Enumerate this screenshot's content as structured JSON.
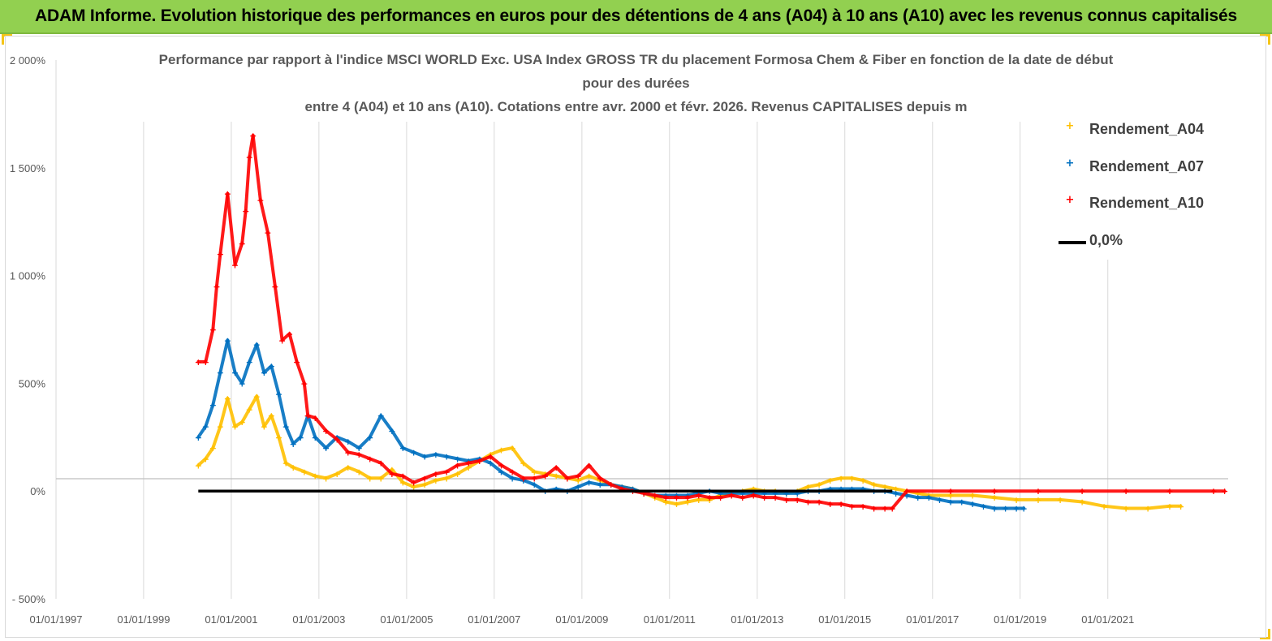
{
  "banner": {
    "title": "ADAM Informe. Evolution historique des performances en euros pour des détentions de 4 ans (A04) à 10 ans (A10) avec les revenus connus capitalisés"
  },
  "colors": {
    "banner_bg": "#92d050",
    "corner_marks": "#f5c518",
    "A04": "#ffc000",
    "A07": "#0070c0",
    "A10": "#ff0000",
    "zero_line": "#000000"
  },
  "chart_data": {
    "type": "scatter",
    "title": [
      "Performance par rapport à l'indice MSCI WORLD Exc. USA Index GROSS TR  du placement Formosa Chem & Fiber  en fonction de la date de début",
      "pour des durées",
      "entre 4 (A04) et 10 ans (A10). Cotations entre avr. 2000 et févr. 2026. Revenus CAPITALISES depuis m"
    ],
    "xlabel": "",
    "ylabel": "",
    "x_axis": {
      "type": "date",
      "range": [
        "1997-01-01",
        "2023-10-01"
      ],
      "tick_labels": [
        "01/01/1997",
        "01/01/1999",
        "01/01/2001",
        "01/01/2003",
        "01/01/2005",
        "01/01/2007",
        "01/01/2009",
        "01/01/2011",
        "01/01/2013",
        "01/01/2015",
        "01/01/2017",
        "01/01/2019",
        "01/01/2021"
      ]
    },
    "y_axis": {
      "range": [
        -5,
        20
      ],
      "unit": "ratio (1 = 100%)",
      "tick_values": [
        -5,
        0,
        5,
        10,
        15,
        20
      ],
      "tick_labels": [
        "- 500%",
        "0%",
        "500%",
        "1 000%",
        "1 500%",
        "2 000%"
      ]
    },
    "grid": {
      "horizontal": false,
      "vertical": true,
      "horizontal_baseline_at": 0
    },
    "legend": {
      "placement": "right",
      "entries": [
        "Rendement_A04",
        "Rendement_A07",
        "Rendement_A10",
        "0,0%"
      ]
    },
    "series": [
      {
        "name": "Rendement_A04",
        "marker": "+",
        "color": "#ffc000",
        "points": [
          [
            "2000-04-01",
            1.2
          ],
          [
            "2000-06-01",
            1.5
          ],
          [
            "2000-08-01",
            2.0
          ],
          [
            "2000-10-01",
            3.0
          ],
          [
            "2000-12-01",
            4.3
          ],
          [
            "2001-02-01",
            3.0
          ],
          [
            "2001-04-01",
            3.2
          ],
          [
            "2001-06-01",
            3.8
          ],
          [
            "2001-08-01",
            4.4
          ],
          [
            "2001-10-01",
            3.0
          ],
          [
            "2001-12-01",
            3.5
          ],
          [
            "2002-02-01",
            2.5
          ],
          [
            "2002-04-01",
            1.3
          ],
          [
            "2002-06-01",
            1.1
          ],
          [
            "2002-09-01",
            0.9
          ],
          [
            "2002-12-01",
            0.7
          ],
          [
            "2003-03-01",
            0.6
          ],
          [
            "2003-06-01",
            0.8
          ],
          [
            "2003-09-01",
            1.1
          ],
          [
            "2003-12-01",
            0.9
          ],
          [
            "2004-03-01",
            0.6
          ],
          [
            "2004-06-01",
            0.6
          ],
          [
            "2004-09-01",
            1.0
          ],
          [
            "2004-12-01",
            0.4
          ],
          [
            "2005-03-01",
            0.2
          ],
          [
            "2005-06-01",
            0.3
          ],
          [
            "2005-09-01",
            0.5
          ],
          [
            "2005-12-01",
            0.6
          ],
          [
            "2006-03-01",
            0.8
          ],
          [
            "2006-06-01",
            1.1
          ],
          [
            "2006-09-01",
            1.4
          ],
          [
            "2006-12-01",
            1.7
          ],
          [
            "2007-03-01",
            1.9
          ],
          [
            "2007-06-01",
            2.0
          ],
          [
            "2007-09-01",
            1.3
          ],
          [
            "2007-12-01",
            0.9
          ],
          [
            "2008-03-01",
            0.8
          ],
          [
            "2008-06-01",
            0.7
          ],
          [
            "2008-09-01",
            0.6
          ],
          [
            "2008-12-01",
            0.5
          ],
          [
            "2009-03-01",
            0.7
          ],
          [
            "2009-06-01",
            0.5
          ],
          [
            "2009-09-01",
            0.3
          ],
          [
            "2009-12-01",
            0.2
          ],
          [
            "2010-03-01",
            0.1
          ],
          [
            "2010-06-01",
            -0.1
          ],
          [
            "2010-09-01",
            -0.3
          ],
          [
            "2010-12-01",
            -0.5
          ],
          [
            "2011-03-01",
            -0.6
          ],
          [
            "2011-06-01",
            -0.5
          ],
          [
            "2011-09-01",
            -0.4
          ],
          [
            "2011-12-01",
            -0.4
          ],
          [
            "2012-03-01",
            -0.2
          ],
          [
            "2012-06-01",
            -0.1
          ],
          [
            "2012-09-01",
            0.0
          ],
          [
            "2012-12-01",
            0.1
          ],
          [
            "2013-03-01",
            0.0
          ],
          [
            "2013-06-01",
            0.0
          ],
          [
            "2013-09-01",
            -0.1
          ],
          [
            "2013-12-01",
            0.0
          ],
          [
            "2014-03-01",
            0.2
          ],
          [
            "2014-06-01",
            0.3
          ],
          [
            "2014-09-01",
            0.5
          ],
          [
            "2014-12-01",
            0.6
          ],
          [
            "2015-03-01",
            0.6
          ],
          [
            "2015-06-01",
            0.5
          ],
          [
            "2015-09-01",
            0.3
          ],
          [
            "2015-12-01",
            0.2
          ],
          [
            "2016-03-01",
            0.1
          ],
          [
            "2016-06-01",
            0.0
          ],
          [
            "2016-09-01",
            -0.1
          ],
          [
            "2016-12-01",
            -0.2
          ],
          [
            "2017-06-01",
            -0.2
          ],
          [
            "2017-12-01",
            -0.2
          ],
          [
            "2018-06-01",
            -0.3
          ],
          [
            "2018-12-01",
            -0.4
          ],
          [
            "2019-06-01",
            -0.4
          ],
          [
            "2019-12-01",
            -0.4
          ],
          [
            "2020-06-01",
            -0.5
          ],
          [
            "2020-12-01",
            -0.7
          ],
          [
            "2021-06-01",
            -0.8
          ],
          [
            "2021-12-01",
            -0.8
          ],
          [
            "2022-06-01",
            -0.7
          ],
          [
            "2022-09-01",
            -0.7
          ]
        ]
      },
      {
        "name": "Rendement_A07",
        "marker": "+",
        "color": "#0070c0",
        "points": [
          [
            "2000-04-01",
            2.5
          ],
          [
            "2000-06-01",
            3.0
          ],
          [
            "2000-08-01",
            4.0
          ],
          [
            "2000-10-01",
            5.5
          ],
          [
            "2000-12-01",
            7.0
          ],
          [
            "2001-02-01",
            5.5
          ],
          [
            "2001-04-01",
            5.0
          ],
          [
            "2001-06-01",
            6.0
          ],
          [
            "2001-08-01",
            6.8
          ],
          [
            "2001-10-01",
            5.5
          ],
          [
            "2001-12-01",
            5.8
          ],
          [
            "2002-02-01",
            4.5
          ],
          [
            "2002-04-01",
            3.0
          ],
          [
            "2002-06-01",
            2.2
          ],
          [
            "2002-08-01",
            2.5
          ],
          [
            "2002-10-01",
            3.5
          ],
          [
            "2002-12-01",
            2.5
          ],
          [
            "2003-03-01",
            2.0
          ],
          [
            "2003-06-01",
            2.5
          ],
          [
            "2003-09-01",
            2.3
          ],
          [
            "2003-12-01",
            2.0
          ],
          [
            "2004-03-01",
            2.5
          ],
          [
            "2004-06-01",
            3.5
          ],
          [
            "2004-09-01",
            2.8
          ],
          [
            "2004-12-01",
            2.0
          ],
          [
            "2005-03-01",
            1.8
          ],
          [
            "2005-06-01",
            1.6
          ],
          [
            "2005-09-01",
            1.7
          ],
          [
            "2005-12-01",
            1.6
          ],
          [
            "2006-03-01",
            1.5
          ],
          [
            "2006-06-01",
            1.4
          ],
          [
            "2006-09-01",
            1.5
          ],
          [
            "2006-12-01",
            1.3
          ],
          [
            "2007-03-01",
            0.9
          ],
          [
            "2007-06-01",
            0.6
          ],
          [
            "2007-09-01",
            0.5
          ],
          [
            "2007-12-01",
            0.3
          ],
          [
            "2008-03-01",
            0.0
          ],
          [
            "2008-06-01",
            0.1
          ],
          [
            "2008-09-01",
            0.0
          ],
          [
            "2008-12-01",
            0.2
          ],
          [
            "2009-03-01",
            0.4
          ],
          [
            "2009-06-01",
            0.3
          ],
          [
            "2009-09-01",
            0.3
          ],
          [
            "2009-12-01",
            0.2
          ],
          [
            "2010-03-01",
            0.1
          ],
          [
            "2010-06-01",
            -0.1
          ],
          [
            "2010-09-01",
            -0.2
          ],
          [
            "2010-12-01",
            -0.2
          ],
          [
            "2011-03-01",
            -0.2
          ],
          [
            "2011-06-01",
            -0.2
          ],
          [
            "2011-09-01",
            -0.1
          ],
          [
            "2011-12-01",
            0.0
          ],
          [
            "2012-03-01",
            -0.1
          ],
          [
            "2012-06-01",
            -0.1
          ],
          [
            "2012-09-01",
            -0.1
          ],
          [
            "2012-12-01",
            -0.1
          ],
          [
            "2013-03-01",
            -0.1
          ],
          [
            "2013-06-01",
            -0.1
          ],
          [
            "2013-09-01",
            -0.1
          ],
          [
            "2013-12-01",
            -0.1
          ],
          [
            "2014-03-01",
            0.0
          ],
          [
            "2014-06-01",
            0.0
          ],
          [
            "2014-09-01",
            0.1
          ],
          [
            "2014-12-01",
            0.1
          ],
          [
            "2015-03-01",
            0.1
          ],
          [
            "2015-06-01",
            0.1
          ],
          [
            "2015-09-01",
            0.0
          ],
          [
            "2015-12-01",
            0.0
          ],
          [
            "2016-03-01",
            -0.1
          ],
          [
            "2016-06-01",
            -0.2
          ],
          [
            "2016-09-01",
            -0.3
          ],
          [
            "2016-12-01",
            -0.3
          ],
          [
            "2017-03-01",
            -0.4
          ],
          [
            "2017-06-01",
            -0.5
          ],
          [
            "2017-09-01",
            -0.5
          ],
          [
            "2017-12-01",
            -0.6
          ],
          [
            "2018-03-01",
            -0.7
          ],
          [
            "2018-06-01",
            -0.8
          ],
          [
            "2018-09-01",
            -0.8
          ],
          [
            "2018-12-01",
            -0.8
          ],
          [
            "2019-02-01",
            -0.8
          ]
        ]
      },
      {
        "name": "Rendement_A10",
        "marker": "+",
        "color": "#ff0000",
        "points": [
          [
            "2000-04-01",
            6.0
          ],
          [
            "2000-06-01",
            6.0
          ],
          [
            "2000-08-01",
            7.5
          ],
          [
            "2000-09-01",
            9.5
          ],
          [
            "2000-10-01",
            11.0
          ],
          [
            "2000-12-01",
            13.8
          ],
          [
            "2001-02-01",
            10.5
          ],
          [
            "2001-04-01",
            11.5
          ],
          [
            "2001-05-01",
            13.0
          ],
          [
            "2001-06-01",
            15.5
          ],
          [
            "2001-07-01",
            16.5
          ],
          [
            "2001-09-01",
            13.5
          ],
          [
            "2001-11-01",
            12.0
          ],
          [
            "2002-01-01",
            9.5
          ],
          [
            "2002-03-01",
            7.0
          ],
          [
            "2002-05-01",
            7.3
          ],
          [
            "2002-07-01",
            6.0
          ],
          [
            "2002-09-01",
            5.0
          ],
          [
            "2002-10-01",
            3.5
          ],
          [
            "2002-12-01",
            3.4
          ],
          [
            "2003-03-01",
            2.8
          ],
          [
            "2003-06-01",
            2.4
          ],
          [
            "2003-09-01",
            1.8
          ],
          [
            "2003-12-01",
            1.7
          ],
          [
            "2004-03-01",
            1.5
          ],
          [
            "2004-06-01",
            1.3
          ],
          [
            "2004-09-01",
            0.8
          ],
          [
            "2004-12-01",
            0.7
          ],
          [
            "2005-03-01",
            0.4
          ],
          [
            "2005-06-01",
            0.6
          ],
          [
            "2005-09-01",
            0.8
          ],
          [
            "2005-12-01",
            0.9
          ],
          [
            "2006-03-01",
            1.2
          ],
          [
            "2006-06-01",
            1.3
          ],
          [
            "2006-09-01",
            1.4
          ],
          [
            "2006-12-01",
            1.6
          ],
          [
            "2007-03-01",
            1.2
          ],
          [
            "2007-06-01",
            0.9
          ],
          [
            "2007-09-01",
            0.6
          ],
          [
            "2007-12-01",
            0.6
          ],
          [
            "2008-03-01",
            0.7
          ],
          [
            "2008-06-01",
            1.1
          ],
          [
            "2008-09-01",
            0.6
          ],
          [
            "2008-12-01",
            0.7
          ],
          [
            "2009-03-01",
            1.2
          ],
          [
            "2009-06-01",
            0.6
          ],
          [
            "2009-09-01",
            0.3
          ],
          [
            "2009-12-01",
            0.1
          ],
          [
            "2010-03-01",
            0.0
          ],
          [
            "2010-06-01",
            -0.1
          ],
          [
            "2010-09-01",
            -0.2
          ],
          [
            "2010-12-01",
            -0.3
          ],
          [
            "2011-03-01",
            -0.3
          ],
          [
            "2011-06-01",
            -0.3
          ],
          [
            "2011-09-01",
            -0.2
          ],
          [
            "2011-12-01",
            -0.3
          ],
          [
            "2012-03-01",
            -0.3
          ],
          [
            "2012-06-01",
            -0.2
          ],
          [
            "2012-09-01",
            -0.3
          ],
          [
            "2012-12-01",
            -0.2
          ],
          [
            "2013-03-01",
            -0.3
          ],
          [
            "2013-06-01",
            -0.3
          ],
          [
            "2013-09-01",
            -0.4
          ],
          [
            "2013-12-01",
            -0.4
          ],
          [
            "2014-03-01",
            -0.5
          ],
          [
            "2014-06-01",
            -0.5
          ],
          [
            "2014-09-01",
            -0.6
          ],
          [
            "2014-12-01",
            -0.6
          ],
          [
            "2015-03-01",
            -0.7
          ],
          [
            "2015-06-01",
            -0.7
          ],
          [
            "2015-09-01",
            -0.8
          ],
          [
            "2015-12-01",
            -0.8
          ],
          [
            "2016-02-01",
            -0.8
          ],
          [
            "2016-06-01",
            0.0
          ],
          [
            "2017-06-01",
            0.0
          ],
          [
            "2018-06-01",
            0.0
          ],
          [
            "2019-06-01",
            0.0
          ],
          [
            "2020-06-01",
            0.0
          ],
          [
            "2021-06-01",
            0.0
          ],
          [
            "2022-06-01",
            0.0
          ],
          [
            "2023-06-01",
            0.0
          ],
          [
            "2023-09-01",
            0.0
          ]
        ]
      },
      {
        "name": "0,0%",
        "type": "line",
        "color": "#000000",
        "points": [
          [
            "2000-04-01",
            0.0
          ],
          [
            "2016-02-01",
            0.0
          ]
        ]
      }
    ]
  }
}
